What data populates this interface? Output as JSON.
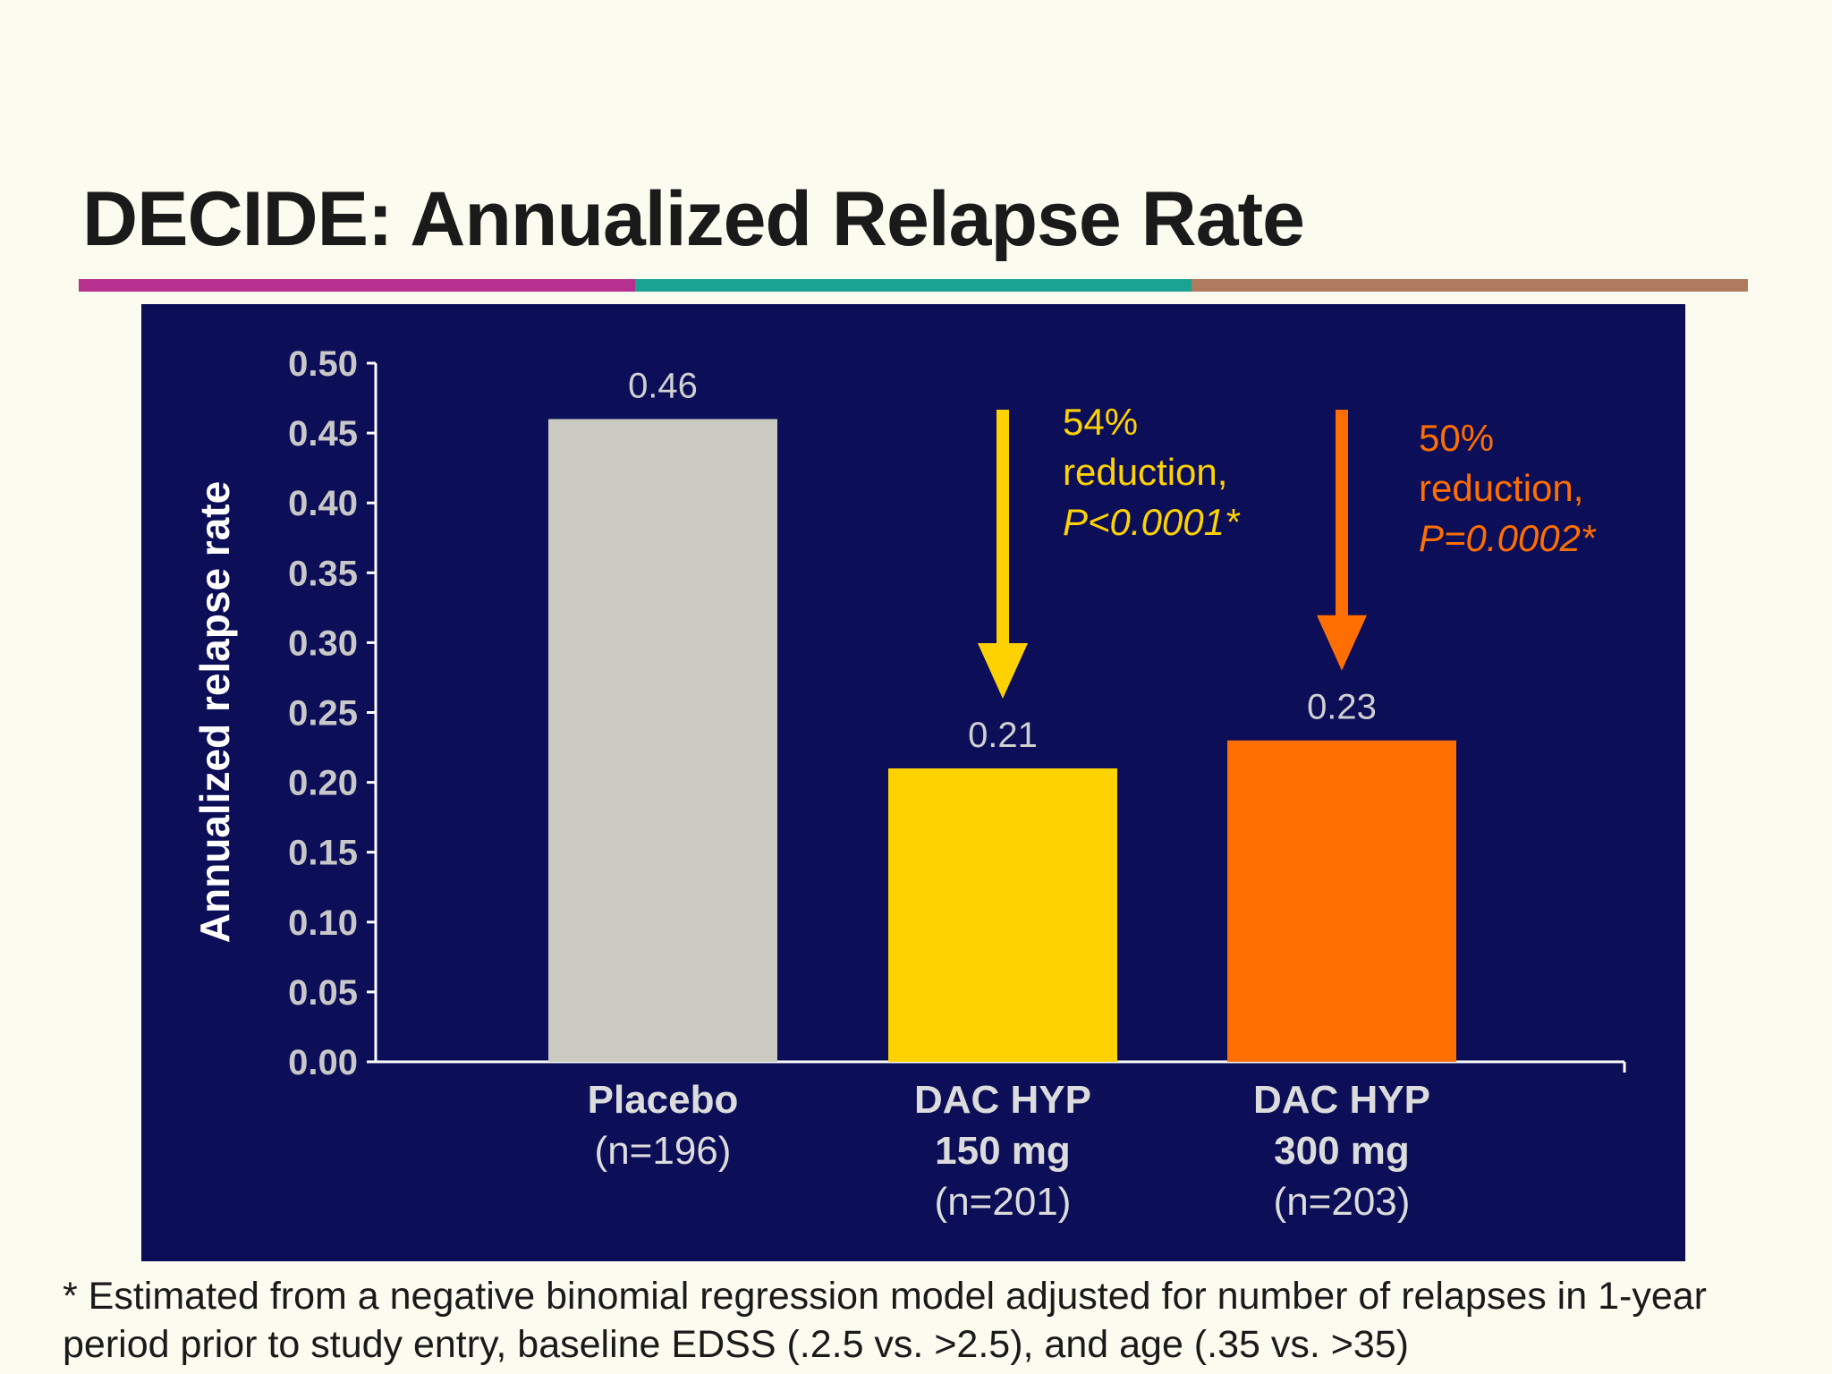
{
  "slide": {
    "title": "DECIDE: Annualized Relapse Rate",
    "rule_colors": [
      "#b8308f",
      "#1aa393",
      "#b07a5f"
    ],
    "panel_color": "#0c0e58",
    "footnote": "* Estimated from a negative binomial regression model adjusted for number of relapses in 1-year period prior to study entry, baseline EDSS (.2.5 vs. >2.5), and age (.35 vs. >35)"
  },
  "chart_data": {
    "type": "bar",
    "ylabel": "Annualized relapse rate",
    "ylim": [
      0,
      0.5
    ],
    "yticks": [
      "0.00",
      "0.05",
      "0.10",
      "0.15",
      "0.20",
      "0.25",
      "0.30",
      "0.35",
      "0.40",
      "0.45",
      "0.50"
    ],
    "bars": [
      {
        "lines": [
          "Placebo",
          "(n=196)"
        ],
        "value": 0.46,
        "label": "0.46",
        "color": "#cacac0"
      },
      {
        "lines": [
          "DAC  HYP",
          "150 mg",
          "(n=201)"
        ],
        "value": 0.21,
        "label": "0.21",
        "color": "#fed200"
      },
      {
        "lines": [
          "DAC HYP",
          "300 mg",
          "(n=203)"
        ],
        "value": 0.23,
        "label": "0.23",
        "color": "#fe6e00"
      }
    ],
    "annotations": [
      {
        "bar": 1,
        "lines": [
          "54%",
          "reduction,",
          "P<0.0001*"
        ],
        "color": "#fed200"
      },
      {
        "bar": 2,
        "lines": [
          "50%",
          "reduction,",
          "P=0.0002*"
        ],
        "color": "#fe6e00"
      }
    ]
  }
}
